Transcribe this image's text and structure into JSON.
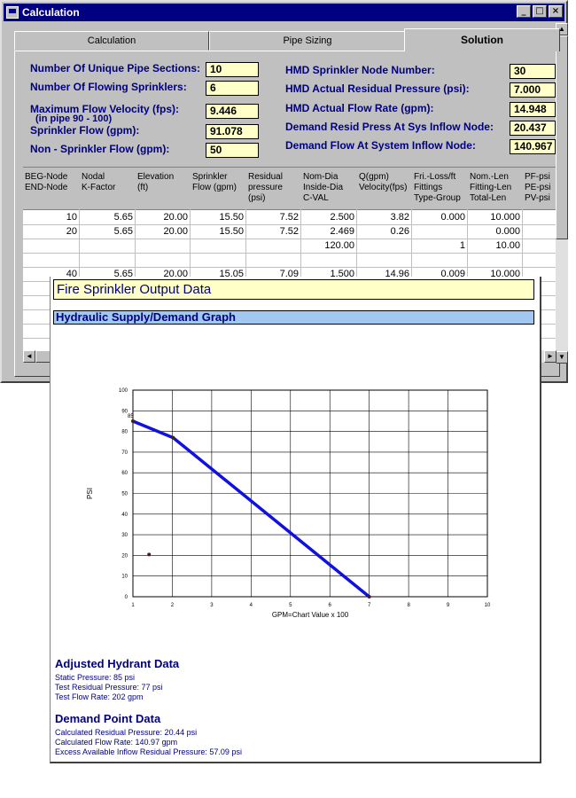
{
  "window": {
    "title": "Calculation"
  },
  "tabs": [
    {
      "label": "Calculation"
    },
    {
      "label": "Pipe Sizing"
    },
    {
      "label": "Solution"
    }
  ],
  "fields": {
    "unique_pipe_sections": {
      "label": "Number Of Unique Pipe Sections:",
      "value": "10"
    },
    "flowing_sprinklers": {
      "label": "Number Of Flowing Sprinklers:",
      "value": "6"
    },
    "max_flow_velocity": {
      "label": "Maximum Flow Velocity (fps):",
      "sublabel": "(in pipe 90 - 100)",
      "value": "9.446"
    },
    "sprinkler_flow": {
      "label": "Sprinkler Flow (gpm):",
      "value": "91.078"
    },
    "non_sprinkler_flow": {
      "label": "Non - Sprinkler Flow (gpm):",
      "value": "50"
    },
    "hmd_node_number": {
      "label": "HMD Sprinkler Node Number:",
      "value": "30"
    },
    "hmd_residual_pressure": {
      "label": "HMD Actual Residual Pressure (psi):",
      "value": "7.000"
    },
    "hmd_flow_rate": {
      "label": "HMD Actual Flow Rate (gpm):",
      "value": "14.948"
    },
    "demand_resid_press": {
      "label": "Demand Resid Press At Sys Inflow Node:",
      "value": "20.437"
    },
    "demand_flow": {
      "label": "Demand Flow At System Inflow Node:",
      "value": "140.967"
    }
  },
  "table": {
    "headers": [
      [
        "BEG-Node",
        "END-Node"
      ],
      [
        "Nodal",
        "K-Factor"
      ],
      [
        "Elevation",
        "(ft)"
      ],
      [
        "Sprinkler",
        "Flow (gpm)"
      ],
      [
        "Residual",
        "pressure",
        "(psi)"
      ],
      [
        "Nom-Dia",
        "Inside-Dia",
        "C-VAL"
      ],
      [
        "Q(gpm)",
        "Velocity(fps)"
      ],
      [
        "Fri.-Loss/ft",
        "Fittings",
        "Type-Group"
      ],
      [
        "Nom.-Len",
        "Fitting-Len",
        "Total-Len"
      ],
      [
        "PF-psi",
        "PE-psi",
        "PV-psi"
      ]
    ],
    "rows": [
      [
        "10",
        "5.65",
        "20.00",
        "15.50",
        "7.52",
        "2.500",
        "3.82",
        "0.000",
        "10.000",
        ""
      ],
      [
        "20",
        "5.65",
        "20.00",
        "15.50",
        "7.52",
        "2.469",
        "0.26",
        "",
        "0.000",
        ""
      ],
      [
        "",
        "",
        "",
        "",
        "",
        "120.00",
        "",
        "1",
        "10.00",
        ""
      ],
      [
        "",
        "",
        "",
        "",
        "",
        "",
        "",
        "",
        "",
        ""
      ],
      [
        "40",
        "5.65",
        "20.00",
        "15.05",
        "7.09",
        "1.500",
        "14.96",
        "0.009",
        "10.000",
        ""
      ]
    ]
  },
  "report": {
    "title": "Fire Sprinkler Output Data",
    "graph_title": "Hydraulic Supply/Demand Graph",
    "adjusted_title": "Adjusted Hydrant Data",
    "adjusted_lines": [
      "Static Pressure: 85 psi",
      "Test Residual Pressure: 77 psi",
      "Test Flow Rate: 202 gpm"
    ],
    "demand_title": "Demand Point Data",
    "demand_lines": [
      "Calculated Residual Pressure: 20.44 psi",
      "Calculated Flow Rate: 140.97 gpm",
      "Excess Available Inflow Residual Pressure: 57.09 psi"
    ]
  },
  "chart_data": {
    "type": "line",
    "title": "",
    "xlabel": "GPM=Chart Value x 100",
    "ylabel": "PSI",
    "xlim": [
      1,
      10
    ],
    "ylim": [
      0,
      100
    ],
    "x_ticks": [
      1,
      2,
      3,
      4,
      5,
      6,
      7,
      8,
      9,
      10
    ],
    "y_ticks": [
      0,
      10,
      20,
      30,
      40,
      50,
      60,
      70,
      80,
      90,
      100
    ],
    "grid": true,
    "series": [
      {
        "x": [
          1.0,
          2.02,
          7.0
        ],
        "y": [
          85,
          77,
          0
        ],
        "color": "#1010e0"
      }
    ],
    "markers": [
      {
        "x": 1.0,
        "y": 85,
        "label": "85"
      },
      {
        "x": 2.02,
        "y": 77,
        "label": ""
      },
      {
        "x": 1.41,
        "y": 20.44,
        "label": ""
      },
      {
        "x": 7.0,
        "y": 0,
        "label": ""
      }
    ]
  }
}
